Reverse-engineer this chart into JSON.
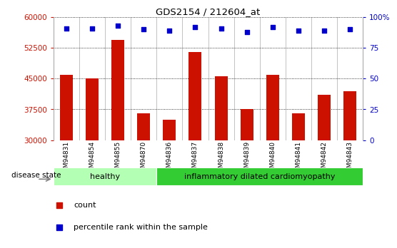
{
  "title": "GDS2154 / 212604_at",
  "samples": [
    "GSM94831",
    "GSM94854",
    "GSM94855",
    "GSM94870",
    "GSM94836",
    "GSM94837",
    "GSM94838",
    "GSM94839",
    "GSM94840",
    "GSM94841",
    "GSM94842",
    "GSM94843"
  ],
  "counts": [
    46000,
    45000,
    54500,
    36500,
    35000,
    51500,
    45500,
    37500,
    46000,
    36500,
    41000,
    42000
  ],
  "percentile_ranks": [
    91,
    91,
    93,
    90,
    89,
    92,
    91,
    88,
    92,
    89,
    89,
    90
  ],
  "ylim_left": [
    30000,
    60000
  ],
  "ylim_right": [
    0,
    100
  ],
  "yticks_left": [
    30000,
    37500,
    45000,
    52500,
    60000
  ],
  "yticks_right": [
    0,
    25,
    50,
    75,
    100
  ],
  "bar_color": "#cc1100",
  "dot_color": "#0000cc",
  "healthy_indices": [
    0,
    1,
    2,
    3
  ],
  "disease_indices": [
    4,
    5,
    6,
    7,
    8,
    9,
    10,
    11
  ],
  "healthy_label": "healthy",
  "disease_label": "inflammatory dilated cardiomyopathy",
  "healthy_color": "#b3ffb3",
  "disease_color": "#33cc33",
  "disease_state_label": "disease state",
  "legend_count_label": "count",
  "legend_percentile_label": "percentile rank within the sample",
  "bar_width": 0.5
}
